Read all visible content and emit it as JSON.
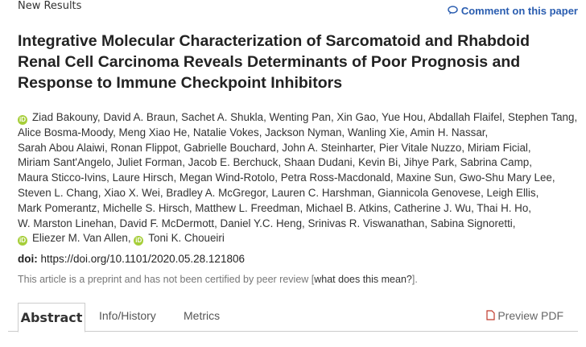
{
  "header": {
    "label": "New Results",
    "comment_link": "Comment on this paper"
  },
  "article": {
    "title": "Integrative Molecular Characterization of Sarcomatoid and Rhabdoid Renal Cell Carcinoma Reveals Determinants of Poor Prognosis and Response to Immune Checkpoint Inhibitors",
    "authors": [
      [
        "Ziad Bakouny, David A. Braun, Sachet A. Shukla, Wenting Pan, Xin Gao, Yue Hou, Abdallah Flaifel, Stephen Tang,"
      ],
      [
        "Alice Bosma-Moody, Meng Xiao He, Natalie Vokes, Jackson Nyman, Wanling Xie, Amin H. Nassar,"
      ],
      [
        "Sarah Abou Alaiwi, Ronan Flippot, Gabrielle Bouchard, John A. Steinharter, Pier Vitale Nuzzo, Miriam Ficial,"
      ],
      [
        "Miriam Sant'Angelo, Juliet Forman, Jacob E. Berchuck, Shaan Dudani, Kevin Bi, Jihye Park, Sabrina Camp,"
      ],
      [
        "Maura Sticco-Ivins, Laure Hirsch, Megan Wind-Rotolo, Petra Ross-Macdonald, Maxine Sun, Gwo-Shu Mary Lee,"
      ],
      [
        "Steven L. Chang, Xiao X. Wei, Bradley A. McGregor, Lauren C. Harshman, Giannicola Genovese, Leigh Ellis,"
      ],
      [
        "Mark Pomerantz, Michelle S. Hirsch, Matthew L. Freedman, Michael B. Atkins, Catherine J. Wu, Thai H. Ho,"
      ],
      [
        "W. Marston Linehan, David F. McDermott, Daniel Y.C. Heng, Srinivas R. Viswanathan, Sabina Signoretti,"
      ],
      [
        "Eliezer M. Van Allen,",
        "Toni K. Choueiri"
      ]
    ],
    "doi_label": "doi:",
    "doi": "https://doi.org/10.1101/2020.05.28.121806",
    "preprint_note": {
      "before": "This article is a preprint and has not been certified by peer review [",
      "link": "what does this mean?",
      "after": "]."
    }
  },
  "tabs": [
    "Abstract",
    "Info/History",
    "Metrics"
  ],
  "preview_pdf": "Preview PDF"
}
